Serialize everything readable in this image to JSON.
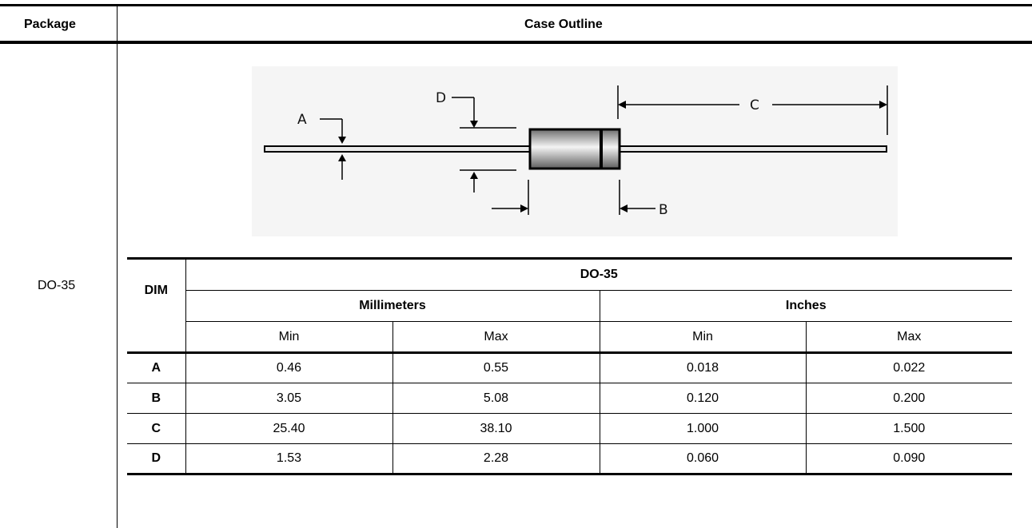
{
  "header": {
    "package_label": "Package",
    "case_outline_label": "Case Outline"
  },
  "package_name": "DO-35",
  "figure": {
    "label_a": "A",
    "label_b": "B",
    "label_c": "C",
    "label_d": "D"
  },
  "table": {
    "dim_header": "DIM",
    "group_header": "DO-35",
    "unit_mm": "Millimeters",
    "unit_in": "Inches",
    "min_label": "Min",
    "max_label": "Max",
    "rows": [
      {
        "dim": "A",
        "mm_min": "0.46",
        "mm_max": "0.55",
        "in_min": "0.018",
        "in_max": "0.022"
      },
      {
        "dim": "B",
        "mm_min": "3.05",
        "mm_max": "5.08",
        "in_min": "0.120",
        "in_max": "0.200"
      },
      {
        "dim": "C",
        "mm_min": "25.40",
        "mm_max": "38.10",
        "in_min": "1.000",
        "in_max": "1.500"
      },
      {
        "dim": "D",
        "mm_min": "1.53",
        "mm_max": "2.28",
        "in_min": "0.060",
        "in_max": "0.090"
      }
    ]
  }
}
